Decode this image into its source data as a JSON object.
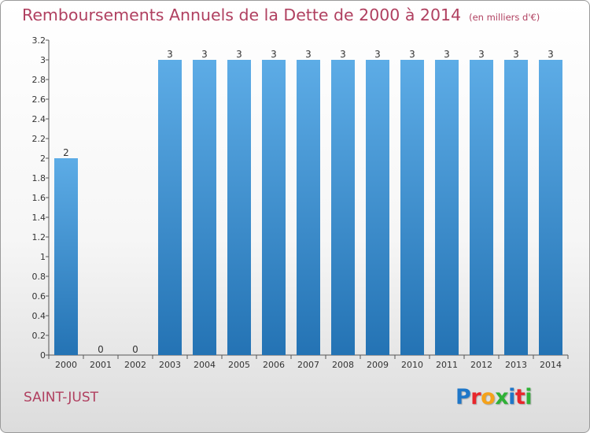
{
  "title": {
    "main": "Remboursements Annuels de la Dette de 2000 à 2014",
    "unit": "(en milliers d'€)"
  },
  "commune": "SAINT-JUST",
  "logo": {
    "letters": [
      {
        "char": "P",
        "color": "#1f77c8"
      },
      {
        "char": "r",
        "color": "#e8262b"
      },
      {
        "char": "o",
        "color": "#f5a21a"
      },
      {
        "char": "x",
        "color": "#2fb136"
      },
      {
        "char": "i",
        "color": "#1f77c8"
      },
      {
        "char": "t",
        "color": "#e8262b"
      },
      {
        "char": "i",
        "color": "#2fb136"
      }
    ]
  },
  "colors": {
    "bar_light": "#5dace6",
    "bar_dark": "#2473b4",
    "title": "#b04060",
    "text": "#333333"
  },
  "chart_data": {
    "type": "bar",
    "title": "Remboursements Annuels de la Dette de 2000 à 2014",
    "subtitle": "(en milliers d'€)",
    "xlabel": "",
    "ylabel": "",
    "categories": [
      "2000",
      "2001",
      "2002",
      "2003",
      "2004",
      "2005",
      "2006",
      "2007",
      "2008",
      "2009",
      "2010",
      "2011",
      "2012",
      "2013",
      "2014"
    ],
    "values": [
      2,
      0,
      0,
      3,
      3,
      3,
      3,
      3,
      3,
      3,
      3,
      3,
      3,
      3,
      3
    ],
    "data_labels": [
      "2",
      "0",
      "0",
      "3",
      "3",
      "3",
      "3",
      "3",
      "3",
      "3",
      "3",
      "3",
      "3",
      "3",
      "3"
    ],
    "ylim": [
      0,
      3.2
    ],
    "yticks": [
      {
        "value": 0,
        "label": "0"
      },
      {
        "value": 0.2,
        "label": "0.2"
      },
      {
        "value": 0.4,
        "label": "0.4"
      },
      {
        "value": 0.6,
        "label": "0.6"
      },
      {
        "value": 0.8,
        "label": "0.8"
      },
      {
        "value": 1,
        "label": "1"
      },
      {
        "value": 1.2,
        "label": "1.2"
      },
      {
        "value": 1.4,
        "label": "1.4"
      },
      {
        "value": 1.6,
        "label": "1.6"
      },
      {
        "value": 1.8,
        "label": "1.8"
      },
      {
        "value": 2,
        "label": "2"
      },
      {
        "value": 2.2,
        "label": "2.2"
      },
      {
        "value": 2.4,
        "label": "2.4"
      },
      {
        "value": 2.6,
        "label": "2.6"
      },
      {
        "value": 2.8,
        "label": "2.8"
      },
      {
        "value": 3,
        "label": "3"
      },
      {
        "value": 3.2,
        "label": "3.2"
      }
    ],
    "grid": false,
    "legend": "none"
  }
}
